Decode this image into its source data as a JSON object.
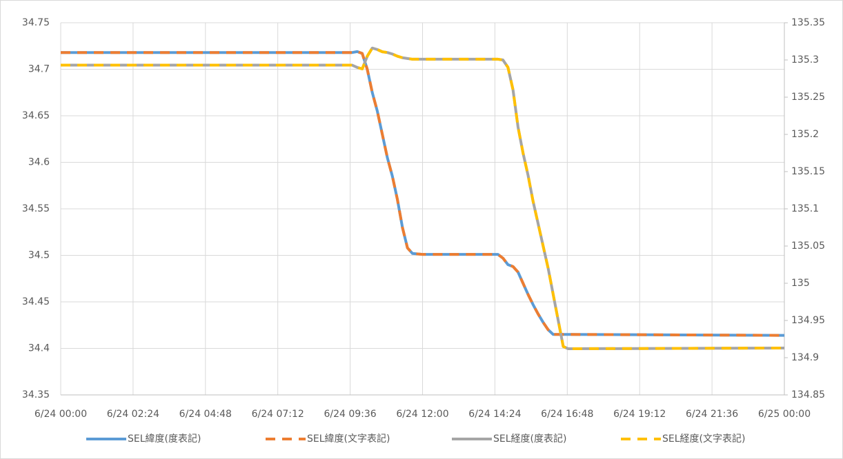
{
  "chart_data": {
    "type": "line",
    "x": [
      "6/24 00:00",
      "6/24 09:40",
      "6/24 09:50",
      "6/24 10:00",
      "6/24 10:10",
      "6/24 10:20",
      "6/24 10:30",
      "6/24 10:40",
      "6/24 10:50",
      "6/24 11:00",
      "6/24 11:10",
      "6/24 11:20",
      "6/24 11:30",
      "6/24 11:40",
      "6/24 12:00",
      "6/24 14:30",
      "6/24 14:40",
      "6/24 14:50",
      "6/24 15:00",
      "6/24 15:10",
      "6/24 15:20",
      "6/24 15:30",
      "6/24 15:40",
      "6/24 15:50",
      "6/24 16:00",
      "6/24 16:10",
      "6/24 16:20",
      "6/24 16:30",
      "6/24 16:40",
      "6/24 16:50",
      "6/25 00:00"
    ],
    "series": [
      {
        "name": "SEL緯度(度表記)",
        "color": "#5b9bd5",
        "dashed": false,
        "values": [
          34.718,
          34.718,
          34.719,
          34.717,
          34.7,
          34.675,
          34.655,
          34.63,
          34.605,
          34.585,
          34.56,
          34.53,
          34.508,
          34.502,
          34.501,
          34.501,
          34.497,
          34.49,
          34.488,
          34.482,
          34.47,
          34.458,
          34.447,
          34.437,
          34.428,
          34.42,
          34.415,
          34.415,
          34.415,
          34.415,
          34.414
        ]
      },
      {
        "name": "SEL緯度(文字表記)",
        "color": "#ed7d31",
        "dashed": true,
        "values": [
          34.718,
          34.718,
          34.719,
          34.717,
          34.7,
          34.675,
          34.655,
          34.63,
          34.605,
          34.585,
          34.56,
          34.53,
          34.508,
          34.502,
          34.501,
          34.501,
          34.497,
          34.49,
          34.488,
          34.482,
          34.47,
          34.458,
          34.447,
          34.437,
          34.428,
          34.42,
          34.415,
          34.415,
          34.415,
          34.415,
          34.414
        ]
      },
      {
        "name": "SEL経度(度表記)",
        "color": "#a5a5a5",
        "dashed": false,
        "axis": "y2",
        "values": [
          135.293,
          135.293,
          135.29,
          135.288,
          135.305,
          135.316,
          135.314,
          135.311,
          135.31,
          135.308,
          135.305,
          135.303,
          135.302,
          135.301,
          135.301,
          135.301,
          135.3,
          135.29,
          135.26,
          135.21,
          135.175,
          135.145,
          135.11,
          135.08,
          135.05,
          135.02,
          134.985,
          134.95,
          134.915,
          134.912,
          134.913
        ]
      },
      {
        "name": "SEL経度(文字表記)",
        "color": "#ffc000",
        "dashed": true,
        "axis": "y2",
        "values": [
          135.293,
          135.293,
          135.29,
          135.288,
          135.305,
          135.316,
          135.314,
          135.311,
          135.31,
          135.308,
          135.305,
          135.303,
          135.302,
          135.301,
          135.301,
          135.301,
          135.3,
          135.29,
          135.26,
          135.21,
          135.175,
          135.145,
          135.11,
          135.08,
          135.05,
          135.02,
          134.985,
          134.95,
          134.915,
          134.912,
          134.913
        ]
      }
    ],
    "xlim": [
      "6/24 00:00",
      "6/25 00:00"
    ],
    "xticks": [
      "6/24 00:00",
      "6/24 02:24",
      "6/24 04:48",
      "6/24 07:12",
      "6/24 09:36",
      "6/24 12:00",
      "6/24 14:24",
      "6/24 16:48",
      "6/24 19:12",
      "6/24 21:36",
      "6/25 00:00"
    ],
    "ylim": [
      34.35,
      34.75
    ],
    "yticks": [
      34.35,
      34.4,
      34.45,
      34.5,
      34.55,
      34.6,
      34.65,
      34.7,
      34.75
    ],
    "y2lim": [
      134.85,
      135.35
    ],
    "y2ticks": [
      134.85,
      134.9,
      134.95,
      135,
      135.05,
      135.1,
      135.15,
      135.2,
      135.25,
      135.3,
      135.35
    ],
    "grid": true,
    "legend": "bottom"
  }
}
